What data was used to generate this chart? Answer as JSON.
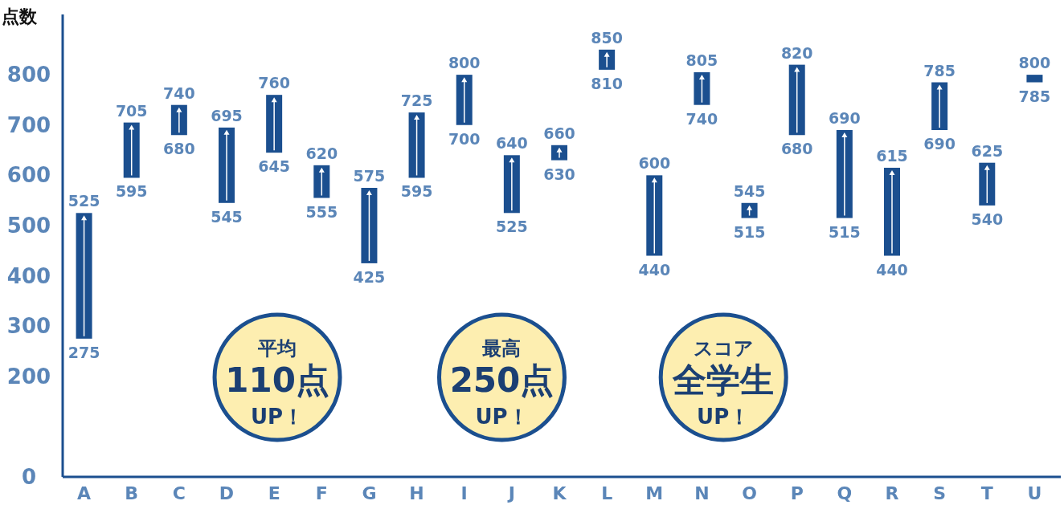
{
  "chart_data": {
    "type": "bar",
    "ylabel": "点数",
    "color": "#1b4f8f",
    "categories": [
      "A",
      "B",
      "C",
      "D",
      "E",
      "F",
      "G",
      "H",
      "I",
      "J",
      "K",
      "L",
      "M",
      "N",
      "O",
      "P",
      "Q",
      "R",
      "S",
      "T",
      "U"
    ],
    "base": [
      275,
      595,
      680,
      545,
      645,
      555,
      425,
      595,
      700,
      525,
      630,
      810,
      440,
      740,
      515,
      680,
      515,
      440,
      690,
      540,
      785
    ],
    "values": [
      250,
      110,
      60,
      150,
      115,
      65,
      150,
      130,
      100,
      115,
      30,
      40,
      160,
      65,
      30,
      140,
      175,
      175,
      95,
      85,
      15
    ],
    "value_labels": [
      "525",
      "705",
      "740",
      "695",
      "760",
      "620",
      "575",
      "725",
      "800",
      "640",
      "660",
      "850",
      "600",
      "805",
      "545",
      "820",
      "690",
      "615",
      "785",
      "625",
      "800"
    ],
    "ylim": [
      0,
      920
    ],
    "yticks": [
      0,
      200,
      300,
      400,
      500,
      600,
      700,
      800
    ],
    "annotations": [
      {
        "text": "275",
        "x": "A",
        "y": 275
      },
      {
        "text": "595",
        "x": "B",
        "y": 595
      },
      {
        "text": "680",
        "x": "C",
        "y": 680
      },
      {
        "text": "545",
        "x": "D",
        "y": 545
      },
      {
        "text": "645",
        "x": "E",
        "y": 645
      },
      {
        "text": "555",
        "x": "F",
        "y": 555
      },
      {
        "text": "425",
        "x": "G",
        "y": 425
      },
      {
        "text": "595",
        "x": "H",
        "y": 595
      },
      {
        "text": "700",
        "x": "I",
        "y": 700
      },
      {
        "text": "525",
        "x": "J",
        "y": 525
      },
      {
        "text": "630",
        "x": "K",
        "y": 630
      },
      {
        "text": "810",
        "x": "L",
        "y": 810
      },
      {
        "text": "440",
        "x": "M",
        "y": 440
      },
      {
        "text": "740",
        "x": "N",
        "y": 740
      },
      {
        "text": "515",
        "x": "O",
        "y": 515
      },
      {
        "text": "680",
        "x": "P",
        "y": 680
      },
      {
        "text": "515",
        "x": "Q",
        "y": 515
      },
      {
        "text": "440",
        "x": "R",
        "y": 440
      },
      {
        "text": "690",
        "x": "S",
        "y": 690
      },
      {
        "text": "540",
        "x": "T",
        "y": 540
      },
      {
        "text": "785",
        "x": "U",
        "y": 785
      },
      "平均",
      "110点",
      "UP！",
      "最高",
      "250点",
      "UP！",
      "スコア",
      "全学生",
      "UP！"
    ]
  }
}
